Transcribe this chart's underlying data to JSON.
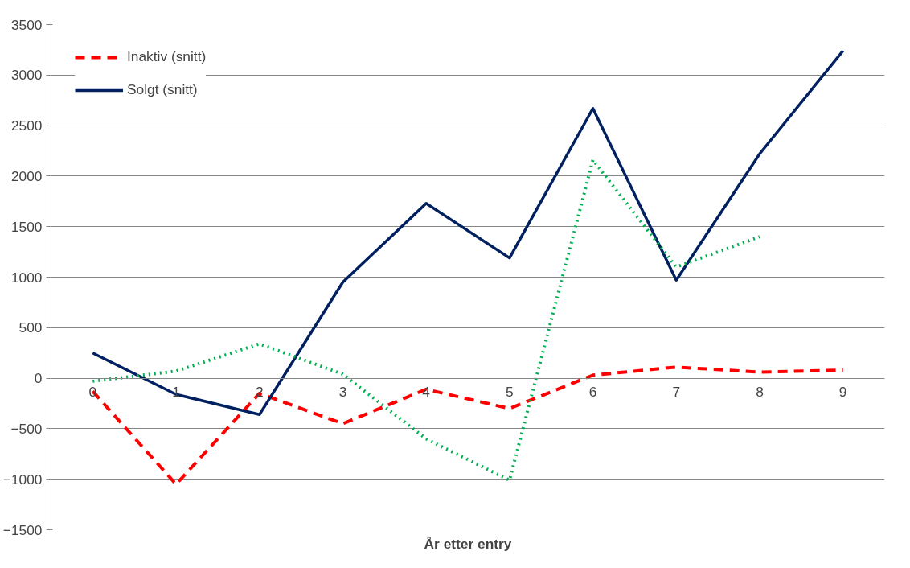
{
  "chart_data": {
    "type": "line",
    "xlabel": "År etter entry",
    "x": [
      0,
      1,
      2,
      3,
      4,
      5,
      6,
      7,
      8,
      9
    ],
    "xlim": [
      -0.5,
      9.5
    ],
    "xticks": [
      0,
      1,
      2,
      3,
      4,
      5,
      6,
      7,
      8,
      9
    ],
    "ylim": [
      -1500,
      3500
    ],
    "yticks": [
      -1500,
      -1000,
      -500,
      0,
      500,
      1000,
      1500,
      2000,
      2500,
      3000,
      3500
    ],
    "grid": "y",
    "legend": "top left",
    "series": [
      {
        "name": "Inaktiv (snitt)",
        "color": "#ff0000",
        "line_style": "dashed",
        "values": [
          -130,
          -1050,
          -150,
          -450,
          -110,
          -300,
          30,
          110,
          60,
          80
        ]
      },
      {
        "name": "Solgt (snitt)",
        "color": "#002060",
        "line_style": "solid",
        "values": [
          250,
          -160,
          -360,
          950,
          1730,
          1190,
          2670,
          970,
          2220,
          3240
        ]
      },
      {
        "color": "#00b050",
        "line_style": "dotted",
        "values": [
          -30,
          70,
          340,
          40,
          -600,
          -1010,
          2160,
          1100,
          1400,
          null
        ]
      }
    ]
  }
}
